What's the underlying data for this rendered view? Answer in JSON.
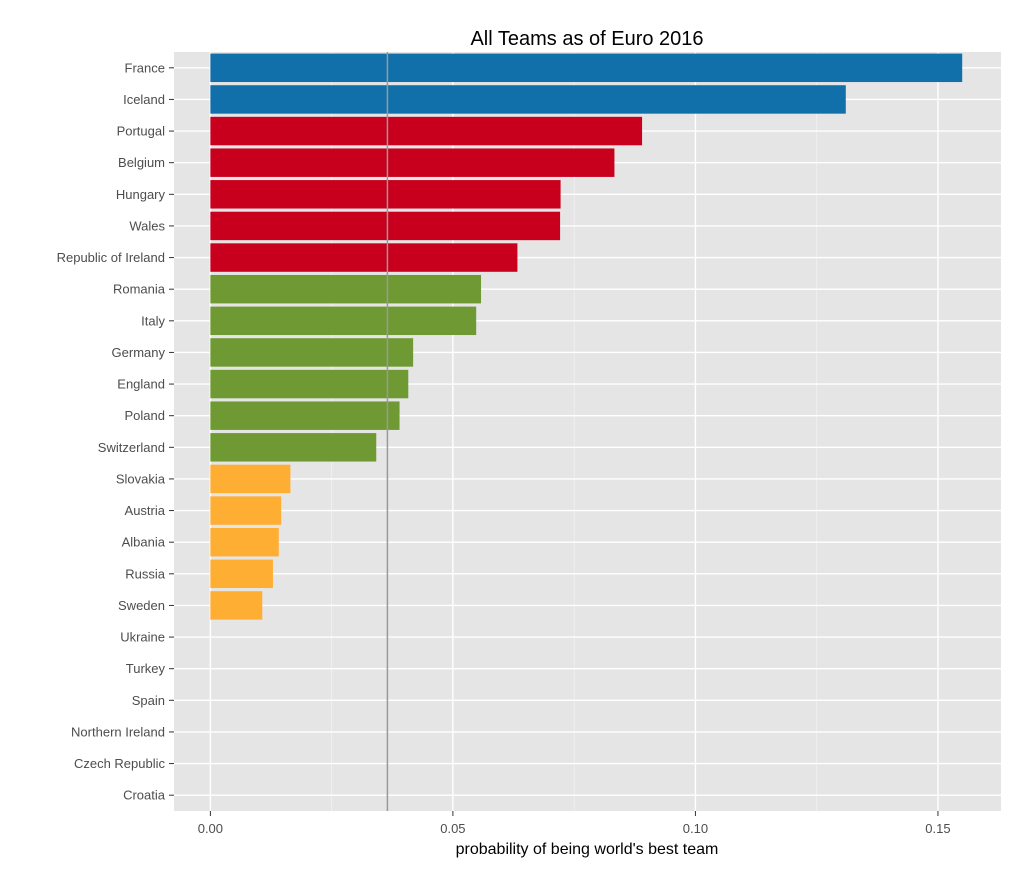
{
  "chart_data": {
    "type": "bar",
    "orientation": "horizontal",
    "title": "All Teams as of Euro 2016",
    "xlabel": "probability of being world's best team",
    "ylabel": "",
    "xlim": [
      -0.0075,
      0.163
    ],
    "xticks": [
      0.0,
      0.05,
      0.1,
      0.15
    ],
    "xtick_labels": [
      "0.00",
      "0.05",
      "0.10",
      "0.15"
    ],
    "grid": true,
    "legend": "none",
    "reference_line": {
      "value": 0.0365,
      "color": "#999999"
    },
    "categories": [
      "France",
      "Iceland",
      "Portugal",
      "Belgium",
      "Hungary",
      "Wales",
      "Republic of Ireland",
      "Romania",
      "Italy",
      "Germany",
      "England",
      "Poland",
      "Switzerland",
      "Slovakia",
      "Austria",
      "Albania",
      "Russia",
      "Sweden",
      "Ukraine",
      "Turkey",
      "Spain",
      "Northern Ireland",
      "Czech Republic",
      "Croatia"
    ],
    "values": [
      0.155,
      0.131,
      0.089,
      0.0833,
      0.0722,
      0.0721,
      0.0633,
      0.0558,
      0.0548,
      0.0418,
      0.0408,
      0.039,
      0.0342,
      0.0165,
      0.0146,
      0.0141,
      0.0129,
      0.0107,
      0,
      0,
      0,
      0,
      0,
      0
    ],
    "bar_colors": [
      "#1170aa",
      "#1170aa",
      "#c8001e",
      "#c8001e",
      "#c8001e",
      "#c8001e",
      "#c8001e",
      "#6f9a33",
      "#6f9a33",
      "#6f9a33",
      "#6f9a33",
      "#6f9a33",
      "#6f9a33",
      "#ffae34",
      "#ffae34",
      "#ffae34",
      "#ffae34",
      "#ffae34",
      "#ffae34",
      "#ffae34",
      "#ffae34",
      "#ffae34",
      "#ffae34",
      "#ffae34"
    ],
    "panel_color": "#e5e5e5",
    "grid_color": "#ffffff"
  }
}
